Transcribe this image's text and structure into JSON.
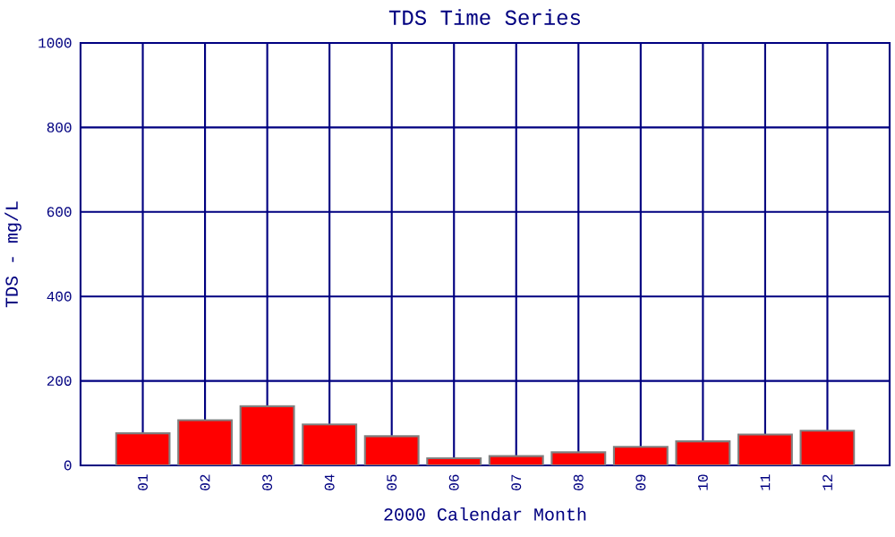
{
  "chart_data": {
    "type": "bar",
    "title": "TDS Time Series",
    "xlabel": "2000 Calendar Month",
    "ylabel": "TDS - mg/L",
    "categories": [
      "01",
      "02",
      "03",
      "04",
      "05",
      "06",
      "07",
      "08",
      "09",
      "10",
      "11",
      "12"
    ],
    "values": [
      76,
      107,
      140,
      97,
      69,
      17,
      22,
      31,
      44,
      57,
      73,
      82
    ],
    "color": "#ff0000",
    "ylim": [
      0,
      1000
    ],
    "yticks": [
      0,
      200,
      400,
      600,
      800,
      1000
    ],
    "grid": true
  }
}
